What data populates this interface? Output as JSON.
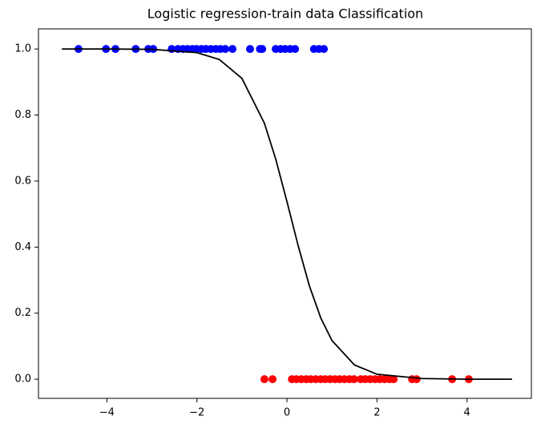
{
  "chart_data": {
    "type": "scatter",
    "title": "Logistic regression-train data Classification",
    "xlim": [
      -5.52,
      5.43
    ],
    "ylim": [
      -0.058,
      1.061
    ],
    "xticks": [
      {
        "value": -4,
        "label": "−4"
      },
      {
        "value": -2,
        "label": "−2"
      },
      0,
      2,
      4
    ],
    "yticks": [
      {
        "value": 0,
        "label": "0.0"
      },
      {
        "value": 0.2,
        "label": "0.2"
      },
      {
        "value": 0.4,
        "label": "0.4"
      },
      {
        "value": 0.6,
        "label": "0.6"
      },
      {
        "value": 0.8,
        "label": "0.8"
      },
      {
        "value": 1,
        "label": "1.0"
      }
    ],
    "grid": false,
    "series": [
      {
        "kind": "scatter",
        "color": "#0000ff",
        "x": [
          -4.63,
          -4.02,
          -3.81,
          -3.36,
          -3.08,
          -2.97,
          -2.56,
          -2.42,
          -2.31,
          -2.21,
          -2.1,
          -2.01,
          -1.9,
          -1.8,
          -1.69,
          -1.58,
          -1.48,
          -1.37,
          -1.21,
          -0.82,
          -0.6,
          -0.55,
          -0.25,
          -0.14,
          -0.04,
          0.07,
          0.18,
          0.6,
          0.71,
          0.82
        ],
        "values": [
          1,
          1,
          1,
          1,
          1,
          1,
          1,
          1,
          1,
          1,
          1,
          1,
          1,
          1,
          1,
          1,
          1,
          1,
          1,
          1,
          1,
          1,
          1,
          1,
          1,
          1,
          1,
          1,
          1,
          1
        ]
      },
      {
        "kind": "scatter",
        "color": "#ff0000",
        "x": [
          -0.5,
          -0.32,
          0.11,
          0.21,
          0.32,
          0.43,
          0.53,
          0.64,
          0.75,
          0.85,
          0.96,
          1.07,
          1.17,
          1.28,
          1.39,
          1.49,
          1.64,
          1.74,
          1.85,
          1.96,
          2.06,
          2.17,
          2.28,
          2.37,
          2.78,
          2.88,
          3.67,
          4.04
        ],
        "values": [
          0,
          0,
          0,
          0,
          0,
          0,
          0,
          0,
          0,
          0,
          0,
          0,
          0,
          0,
          0,
          0,
          0,
          0,
          0,
          0,
          0,
          0,
          0,
          0,
          0,
          0,
          0,
          0
        ]
      },
      {
        "kind": "line",
        "color": "#000000",
        "x": [
          -5,
          -4,
          -3,
          -2,
          -1.5,
          -1,
          -0.5,
          -0.25,
          0,
          0.25,
          0.5,
          0.75,
          1,
          1.5,
          2,
          3,
          4,
          5
        ],
        "values": [
          1,
          1,
          0.999,
          0.989,
          0.968,
          0.911,
          0.775,
          0.667,
          0.538,
          0.404,
          0.282,
          0.186,
          0.117,
          0.043,
          0.015,
          0.002,
          0,
          0
        ]
      }
    ]
  }
}
